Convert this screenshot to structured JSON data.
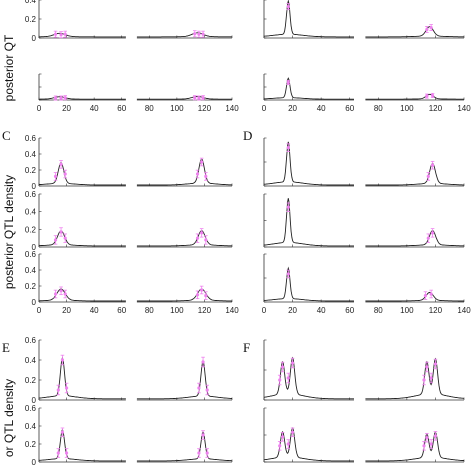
{
  "chart_data": {
    "type": "line",
    "panel_letters": [
      "C",
      "D",
      "E",
      "F"
    ],
    "ylabels": [
      "posterior QT",
      "posterior QTL density",
      "or QTL density"
    ],
    "x_ticks": [
      0,
      20,
      40,
      60,
      80,
      100,
      120,
      140
    ],
    "xlim": [
      0,
      140
    ],
    "colors": {
      "line": "#222222",
      "marker": "#ee82ee",
      "axis": "#333333"
    },
    "panels": [
      {
        "id": "A-1",
        "ylim": [
          0,
          0.4
        ],
        "yticks": [
          "0",
          "0.2",
          "0.4"
        ],
        "peaks": [
          [
            15,
            0.035,
            4
          ],
          [
            115,
            0.04,
            4
          ]
        ],
        "markers": [
          [
            12,
            0.04
          ],
          [
            16,
            0.035
          ],
          [
            19,
            0.04
          ],
          [
            113,
            0.045
          ],
          [
            116,
            0.04
          ],
          [
            119,
            0.04
          ]
        ]
      },
      {
        "id": "A-2",
        "ylim": [
          0,
          0.4
        ],
        "yticks": [],
        "peaks": [
          [
            15,
            0.035,
            4
          ],
          [
            115,
            0.04,
            4
          ]
        ],
        "markers": [
          [
            12,
            0.03
          ],
          [
            16,
            0.03
          ],
          [
            19,
            0.035
          ],
          [
            113,
            0.035
          ],
          [
            116,
            0.03
          ],
          [
            119,
            0.035
          ]
        ]
      },
      {
        "id": "B-1",
        "ylim": [
          0,
          0.4
        ],
        "yticks": [],
        "peaks": [
          [
            17,
            0.35,
            1.2
          ],
          [
            116,
            0.1,
            2.5
          ]
        ],
        "markers": [
          [
            17,
            0.33
          ],
          [
            114,
            0.09
          ],
          [
            117,
            0.11
          ]
        ]
      },
      {
        "id": "B-2",
        "ylim": [
          0,
          0.4
        ],
        "yticks": [],
        "peaks": [
          [
            17,
            0.3,
            1.2
          ],
          [
            116,
            0.07,
            2.5
          ]
        ],
        "markers": [
          [
            17,
            0.27
          ],
          [
            114,
            0.06
          ],
          [
            118,
            0.07
          ]
        ]
      },
      {
        "id": "C-1",
        "ylim": [
          0,
          0.6
        ],
        "yticks": [
          "0",
          "0.2",
          "0.4",
          "0.6"
        ],
        "peaks": [
          [
            16,
            0.26,
            2
          ],
          [
            118,
            0.3,
            2
          ]
        ],
        "markers": [
          [
            12,
            0.12
          ],
          [
            16,
            0.27
          ],
          [
            19,
            0.15
          ],
          [
            115,
            0.15
          ],
          [
            118,
            0.3
          ],
          [
            121,
            0.12
          ]
        ]
      },
      {
        "id": "C-2",
        "ylim": [
          0,
          0.6
        ],
        "yticks": [
          "0",
          "0.2",
          "0.4",
          "0.6"
        ],
        "peaks": [
          [
            16,
            0.16,
            2.5
          ],
          [
            118,
            0.16,
            2.5
          ]
        ],
        "markers": [
          [
            12,
            0.08
          ],
          [
            16,
            0.17
          ],
          [
            19,
            0.1
          ],
          [
            115,
            0.1
          ],
          [
            118,
            0.16
          ],
          [
            121,
            0.08
          ]
        ]
      },
      {
        "id": "C-3",
        "ylim": [
          0,
          0.6
        ],
        "yticks": [
          "0",
          "0.2",
          "0.4",
          "0.6"
        ],
        "peaks": [
          [
            16,
            0.14,
            3
          ],
          [
            118,
            0.14,
            3
          ]
        ],
        "markers": [
          [
            12,
            0.1
          ],
          [
            16,
            0.14
          ],
          [
            19,
            0.1
          ],
          [
            115,
            0.09
          ],
          [
            118,
            0.15
          ],
          [
            121,
            0.08
          ]
        ]
      },
      {
        "id": "D-1",
        "ylim": [
          0,
          0.6
        ],
        "yticks": [],
        "peaks": [
          [
            17,
            0.5,
            1.2
          ],
          [
            118,
            0.25,
            2
          ]
        ],
        "markers": [
          [
            17,
            0.48
          ],
          [
            115,
            0.12
          ],
          [
            118,
            0.26
          ]
        ]
      },
      {
        "id": "D-2",
        "ylim": [
          0,
          0.6
        ],
        "yticks": [],
        "peaks": [
          [
            17,
            0.5,
            1.2
          ],
          [
            118,
            0.16,
            2.2
          ]
        ],
        "markers": [
          [
            17,
            0.45
          ],
          [
            115,
            0.1
          ],
          [
            118,
            0.16
          ]
        ]
      },
      {
        "id": "D-3",
        "ylim": [
          0,
          0.6
        ],
        "yticks": [],
        "peaks": [
          [
            17,
            0.38,
            1.2
          ],
          [
            116,
            0.1,
            2.5
          ]
        ],
        "markers": [
          [
            17,
            0.35
          ],
          [
            113,
            0.08
          ],
          [
            117,
            0.1
          ]
        ]
      },
      {
        "id": "E-1",
        "ylim": [
          0,
          0.6
        ],
        "yticks": [
          "0",
          "0.2",
          "0.4",
          "0.6"
        ],
        "peaks": [
          [
            17,
            0.38,
            1.5
          ],
          [
            119,
            0.35,
            1.5
          ]
        ],
        "markers": [
          [
            14,
            0.1
          ],
          [
            17,
            0.4
          ],
          [
            20,
            0.12
          ],
          [
            116,
            0.12
          ],
          [
            119,
            0.38
          ],
          [
            122,
            0.1
          ]
        ]
      },
      {
        "id": "E-2",
        "ylim": [
          0,
          0.6
        ],
        "yticks": [
          "0",
          "0.2",
          "0.4",
          "0.6"
        ],
        "peaks": [
          [
            17,
            0.32,
            1.5
          ],
          [
            119,
            0.3,
            1.5
          ]
        ],
        "markers": [
          [
            14,
            0.1
          ],
          [
            17,
            0.33
          ],
          [
            20,
            0.1
          ],
          [
            116,
            0.1
          ],
          [
            119,
            0.3
          ],
          [
            122,
            0.1
          ]
        ]
      },
      {
        "id": "F-1",
        "ylim": [
          0,
          0.6
        ],
        "yticks": [],
        "peaks": [
          [
            13,
            0.32,
            1.5
          ],
          [
            20,
            0.36,
            1.5
          ],
          [
            114,
            0.32,
            1.5
          ],
          [
            120,
            0.35,
            1.5
          ]
        ],
        "markers": [
          [
            11,
            0.2
          ],
          [
            13,
            0.33
          ],
          [
            17,
            0.22
          ],
          [
            20,
            0.37
          ],
          [
            112,
            0.2
          ],
          [
            114,
            0.33
          ],
          [
            117,
            0.22
          ],
          [
            120,
            0.36
          ]
        ]
      },
      {
        "id": "F-2",
        "ylim": [
          0,
          0.6
        ],
        "yticks": [],
        "peaks": [
          [
            13,
            0.28,
            1.5
          ],
          [
            20,
            0.32,
            1.5
          ],
          [
            114,
            0.26,
            1.5
          ],
          [
            120,
            0.28,
            1.5
          ]
        ],
        "markers": [
          [
            11,
            0.18
          ],
          [
            13,
            0.28
          ],
          [
            17,
            0.2
          ],
          [
            20,
            0.33
          ],
          [
            112,
            0.18
          ],
          [
            114,
            0.27
          ],
          [
            117,
            0.2
          ],
          [
            120,
            0.29
          ]
        ]
      }
    ]
  }
}
